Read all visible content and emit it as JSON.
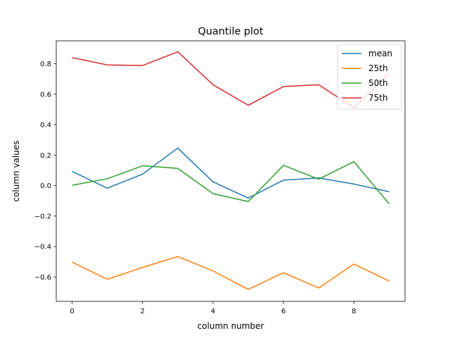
{
  "chart_data": {
    "type": "line",
    "title": "Quantile plot",
    "xlabel": "column number",
    "ylabel": "column values",
    "xlim": [
      -0.45,
      9.45
    ],
    "ylim": [
      -0.76,
      0.95
    ],
    "x": [
      0,
      1,
      2,
      3,
      4,
      5,
      6,
      7,
      8,
      9
    ],
    "x_ticks": [
      0,
      2,
      4,
      6,
      8
    ],
    "x_tick_labels": [
      "0",
      "2",
      "4",
      "6",
      "8"
    ],
    "y_ticks": [
      -0.6,
      -0.4,
      -0.2,
      0.0,
      0.2,
      0.4,
      0.6,
      0.8
    ],
    "y_tick_labels": [
      "−0.6",
      "−0.4",
      "−0.2",
      "0.0",
      "0.2",
      "0.4",
      "0.6",
      "0.8"
    ],
    "grid": false,
    "legend_position": "top-right",
    "series": [
      {
        "name": "mean",
        "color": "#1f77b4",
        "values": [
          0.093,
          -0.017,
          0.075,
          0.246,
          0.025,
          -0.082,
          0.036,
          0.05,
          0.01,
          -0.04
        ]
      },
      {
        "name": "25th",
        "color": "#ff7f0e",
        "values": [
          -0.502,
          -0.615,
          -0.537,
          -0.466,
          -0.56,
          -0.681,
          -0.572,
          -0.672,
          -0.515,
          -0.627
        ]
      },
      {
        "name": "50th",
        "color": "#2ca02c",
        "values": [
          0.002,
          0.045,
          0.13,
          0.113,
          -0.053,
          -0.105,
          0.133,
          0.042,
          0.157,
          -0.12
        ]
      },
      {
        "name": "75th",
        "color": "#d62728",
        "values": [
          0.84,
          0.792,
          0.788,
          0.878,
          0.662,
          0.527,
          0.65,
          0.662,
          0.511,
          0.736
        ]
      }
    ]
  }
}
